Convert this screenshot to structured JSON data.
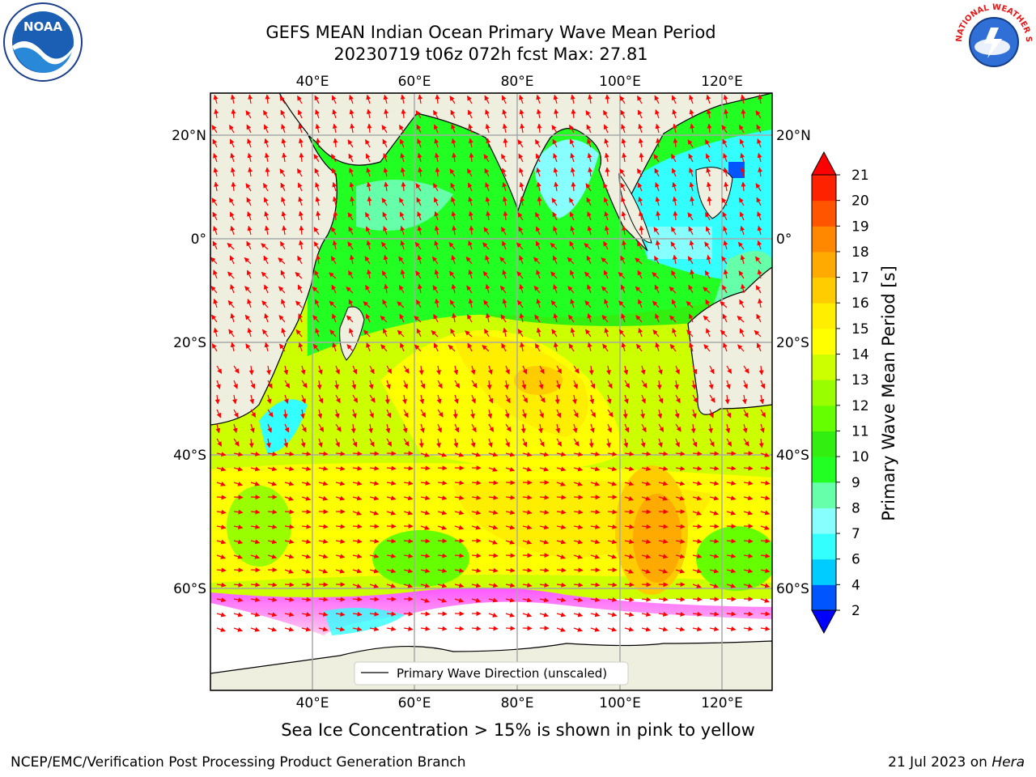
{
  "title": {
    "line1": "GEFS MEAN Indian Ocean Primary Wave Mean Period",
    "line2": "20230719 t06z 072h fcst   Max: 27.81"
  },
  "map": {
    "lon_ticks": [
      "40°E",
      "60°E",
      "80°E",
      "100°E",
      "120°E"
    ],
    "lat_ticks_left": [
      "20°N",
      "0°",
      "20°S",
      "40°S",
      "60°S"
    ],
    "lat_ticks_right": [
      "20°N",
      "0°",
      "20°S",
      "40°S",
      "60°S"
    ],
    "legend_label": "Primary Wave Direction (unscaled)",
    "land_color": "#efefdf",
    "arrow_color": "#ff0000",
    "grid": true
  },
  "colorbar": {
    "label": "Primary Wave Mean Period [s]",
    "ticks": [
      "2",
      "4",
      "6",
      "7",
      "8",
      "9",
      "10",
      "11",
      "12",
      "13",
      "14",
      "15",
      "16",
      "17",
      "18",
      "19",
      "20",
      "21"
    ],
    "colors": [
      "#0055ff",
      "#00ccff",
      "#33ffff",
      "#88ffff",
      "#66ffaa",
      "#22ff22",
      "#33ee11",
      "#66ff00",
      "#99ff00",
      "#ccff00",
      "#ffff00",
      "#ffee00",
      "#ffcc00",
      "#ffaa00",
      "#ff8800",
      "#ff5500",
      "#ff2200"
    ],
    "extend_low_color": "#0000ff",
    "extend_high_color": "#ff0000"
  },
  "caption": "Sea Ice Concentration > 15% is shown in pink to yellow",
  "footer": {
    "left": "NCEP/EMC/Verification Post Processing Product Generation Branch",
    "right_prefix": "21 Jul 2023 on ",
    "right_host": "Hera"
  },
  "logos": {
    "noaa_text": "NOAA",
    "nws_text": "NATIONAL WEATHER SERVICE"
  }
}
